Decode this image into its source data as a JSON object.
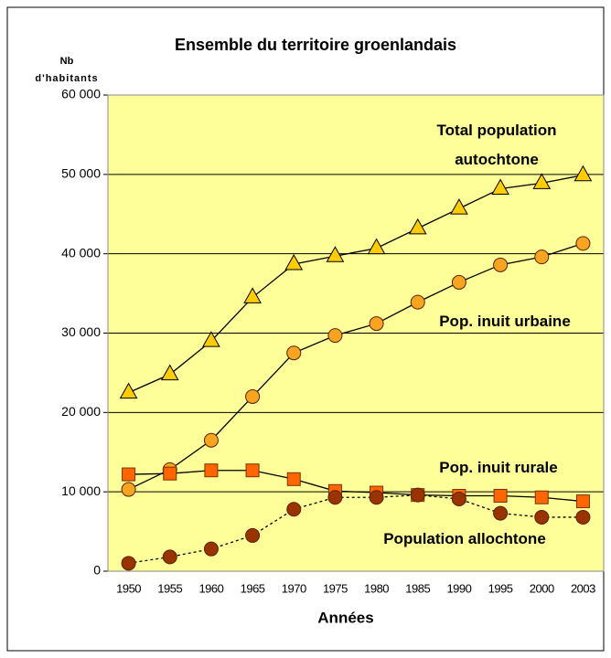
{
  "chart_data": {
    "type": "line",
    "title": "Ensemble du territoire groenlandais",
    "ylabel": [
      "Nb",
      "d'habitants"
    ],
    "xlabel": "Années",
    "categories": [
      "1950",
      "1955",
      "1960",
      "1965",
      "1970",
      "1975",
      "1980",
      "1985",
      "1990",
      "1995",
      "2000",
      "2003"
    ],
    "ylim": [
      0,
      60000
    ],
    "yticks": [
      0,
      {
        "value": 10000,
        "label": "10 000"
      },
      {
        "value": 20000,
        "label": "20 000"
      },
      {
        "value": 30000,
        "label": "30 000"
      },
      {
        "value": 40000,
        "label": "40 000"
      },
      {
        "value": 50000,
        "label": "50 000"
      },
      {
        "value": 60000,
        "label": "60 000"
      }
    ],
    "grid": true,
    "series": [
      {
        "name": "Total population autochtone",
        "color": "#ffcc00",
        "marker": "triangle",
        "dashed": false,
        "values": [
          22500,
          24800,
          29000,
          34500,
          38700,
          39700,
          40700,
          43200,
          45700,
          48200,
          48900,
          49900
        ]
      },
      {
        "name": "Pop. inuit urbaine",
        "color": "#f7a520",
        "marker": "circle",
        "dashed": false,
        "values": [
          10300,
          12800,
          16500,
          22000,
          27500,
          29700,
          31200,
          33900,
          36400,
          38600,
          39600,
          41300
        ]
      },
      {
        "name": "Pop. inuit rurale",
        "color": "#ff6600",
        "marker": "square",
        "dashed": false,
        "values": [
          12200,
          12300,
          12700,
          12700,
          11600,
          10100,
          9900,
          9600,
          9500,
          9500,
          9300,
          8800
        ]
      },
      {
        "name": "Population allochtone",
        "color": "#993300",
        "marker": "circle",
        "dashed": true,
        "values": [
          1000,
          1800,
          2800,
          4500,
          7800,
          9300,
          9300,
          9600,
          9100,
          7300,
          6800,
          6800
        ]
      }
    ]
  }
}
